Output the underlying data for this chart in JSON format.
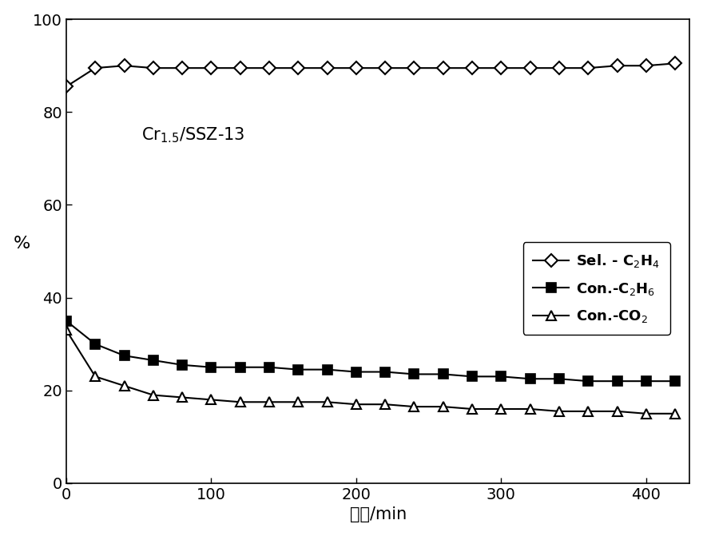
{
  "sel_c2h4_x": [
    0,
    20,
    40,
    60,
    80,
    100,
    120,
    140,
    160,
    180,
    200,
    220,
    240,
    260,
    280,
    300,
    320,
    340,
    360,
    380,
    400,
    420
  ],
  "sel_c2h4_y": [
    85.5,
    89.5,
    90.0,
    89.5,
    89.5,
    89.5,
    89.5,
    89.5,
    89.5,
    89.5,
    89.5,
    89.5,
    89.5,
    89.5,
    89.5,
    89.5,
    89.5,
    89.5,
    89.5,
    90.0,
    90.0,
    90.5
  ],
  "con_c2h6_x": [
    0,
    20,
    40,
    60,
    80,
    100,
    120,
    140,
    160,
    180,
    200,
    220,
    240,
    260,
    280,
    300,
    320,
    340,
    360,
    380,
    400,
    420
  ],
  "con_c2h6_y": [
    35.0,
    30.0,
    27.5,
    26.5,
    25.5,
    25.0,
    25.0,
    25.0,
    24.5,
    24.5,
    24.0,
    24.0,
    23.5,
    23.5,
    23.0,
    23.0,
    22.5,
    22.5,
    22.0,
    22.0,
    22.0,
    22.0
  ],
  "con_co2_x": [
    0,
    20,
    40,
    60,
    80,
    100,
    120,
    140,
    160,
    180,
    200,
    220,
    240,
    260,
    280,
    300,
    320,
    340,
    360,
    380,
    400,
    420
  ],
  "con_co2_y": [
    33.0,
    23.0,
    21.0,
    19.0,
    18.5,
    18.0,
    17.5,
    17.5,
    17.5,
    17.5,
    17.0,
    17.0,
    16.5,
    16.5,
    16.0,
    16.0,
    16.0,
    15.5,
    15.5,
    15.5,
    15.0,
    15.0
  ],
  "xlabel": "时间/min",
  "ylabel": "%",
  "annotation": "Cr$_{1.5}$/SSZ-13",
  "legend_sel": "Sel. - C$_2$H$_4$",
  "legend_con_c2h6": "Con.-C$_2$H$_6$",
  "legend_con_co2": "Con.-CO$_2$",
  "xlim": [
    0,
    430
  ],
  "ylim": [
    0,
    100
  ],
  "xticks": [
    0,
    100,
    200,
    300,
    400
  ],
  "yticks": [
    0,
    20,
    40,
    60,
    80,
    100
  ],
  "line_color": "#000000",
  "marker_size": 8,
  "linewidth": 1.5
}
